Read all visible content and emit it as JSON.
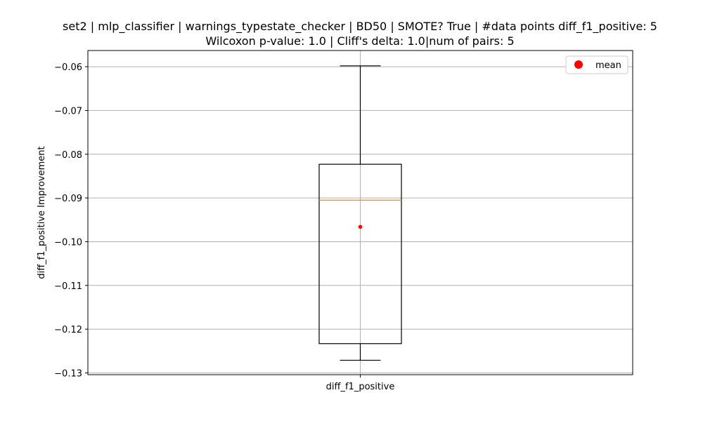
{
  "chart_data": {
    "type": "box",
    "title": "set2 | mlp_classifier | warnings_typestate_checker | BD50 | SMOTE? True | #data points diff_f1_positive: 5",
    "subtitle": "Wilcoxon p-value: 1.0 | Cliff's delta: 1.0|num of pairs: 5",
    "xlabel": "",
    "ylabel": "diff_f1_positive Improvement",
    "categories": [
      "diff_f1_positive"
    ],
    "ylim": [
      -0.1304,
      -0.0563
    ],
    "yticks": [
      -0.06,
      -0.07,
      -0.08,
      -0.09,
      -0.1,
      -0.11,
      -0.12,
      -0.13
    ],
    "ytick_labels": [
      "−0.06",
      "−0.07",
      "−0.08",
      "−0.09",
      "−0.10",
      "−0.11",
      "−0.12",
      "−0.13"
    ],
    "box": {
      "whisker_high": -0.0598,
      "q3": -0.0823,
      "median": -0.0905,
      "q1": -0.1233,
      "whisker_low": -0.1271,
      "mean": -0.0966
    },
    "grid": true,
    "legend": {
      "position": "top-right",
      "entries": [
        {
          "label": "mean",
          "color": "#ff0000",
          "marker": "circle"
        }
      ]
    },
    "colors": {
      "box": "#000000",
      "median": "#ff7f0e",
      "mean": "#ff0000",
      "grid": "#b0b0b0"
    }
  }
}
